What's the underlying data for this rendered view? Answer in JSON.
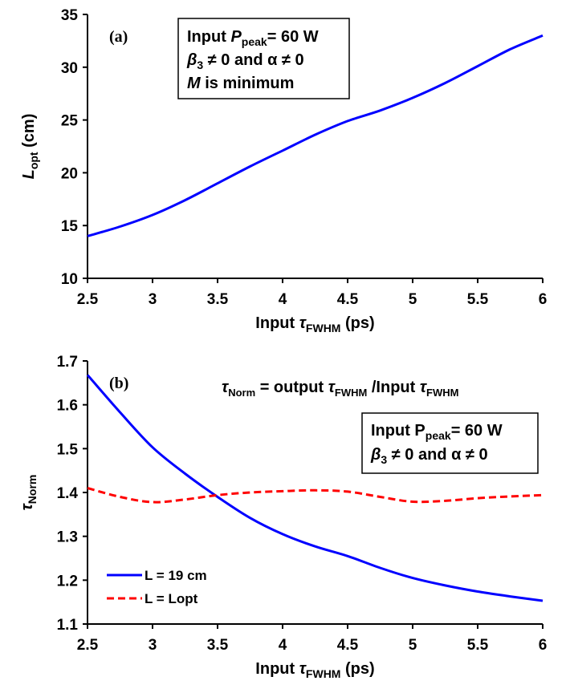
{
  "chart_data": [
    {
      "panel": "(a)",
      "type": "line",
      "xlabel": {
        "prefix": "Input ",
        "symbol": "τ",
        "sub": "FWHM",
        "suffix": " (ps)"
      },
      "ylabel": {
        "symbol": "L",
        "sub": "opt",
        "suffix": " (cm)"
      },
      "xlim": [
        2.5,
        6
      ],
      "ylim": [
        10,
        35
      ],
      "xticks": [
        "2.5",
        "3",
        "3.5",
        "4",
        "4.5",
        "5",
        "5.5",
        "6"
      ],
      "yticks": [
        "10",
        "15",
        "20",
        "25",
        "30",
        "35"
      ],
      "grid": false,
      "annotation": [
        {
          "prefix": "Input ",
          "italic": "P",
          "sub": "peak",
          "suffix": "= 60 W"
        },
        {
          "prefix": "",
          "italic": "β",
          "sub": "3",
          "suffix": " ≠ 0 and α ≠ 0"
        },
        {
          "prefix": "",
          "italic": "M",
          "sub": "",
          "suffix": " is minimum"
        }
      ],
      "series": [
        {
          "color": "#0000ff",
          "style": "solid",
          "x": [
            2.5,
            2.75,
            3.0,
            3.25,
            3.5,
            3.75,
            4.0,
            4.25,
            4.5,
            4.75,
            5.0,
            5.25,
            5.5,
            5.75,
            6.0
          ],
          "y": [
            14.0,
            14.9,
            16.0,
            17.4,
            19.0,
            20.6,
            22.1,
            23.6,
            24.9,
            25.9,
            27.1,
            28.5,
            30.1,
            31.7,
            33.0
          ]
        }
      ]
    },
    {
      "panel": "(b)",
      "type": "line",
      "xlabel": {
        "prefix": "Input ",
        "symbol": "τ",
        "sub": "FWHM",
        "suffix": " (ps)"
      },
      "ylabel": {
        "symbol": "τ",
        "sub": "Norm",
        "suffix": ""
      },
      "xlim": [
        2.5,
        6
      ],
      "ylim": [
        1.1,
        1.7
      ],
      "xticks": [
        "2.5",
        "3",
        "3.5",
        "4",
        "4.5",
        "5",
        "5.5",
        "6"
      ],
      "yticks": [
        "1.1",
        "1.2",
        "1.3",
        "1.4",
        "1.5",
        "1.6",
        "1.7"
      ],
      "grid": false,
      "formula": "τNorm = output τFWHM /Input τFWHM",
      "annotation": [
        {
          "prefix": "Input P",
          "italic": "",
          "sub": "peak",
          "suffix": "= 60 W"
        },
        {
          "prefix": "",
          "italic": "β",
          "sub": "3",
          "suffix": " ≠ 0 and α ≠ 0"
        }
      ],
      "legend_position": "bottom-left",
      "series": [
        {
          "name": "L = 19 cm",
          "color": "#0000ff",
          "style": "solid",
          "x": [
            2.5,
            2.75,
            3.0,
            3.25,
            3.5,
            3.75,
            4.0,
            4.25,
            4.5,
            4.75,
            5.0,
            5.25,
            5.5,
            5.75,
            6.0
          ],
          "y": [
            1.668,
            1.583,
            1.503,
            1.443,
            1.39,
            1.342,
            1.305,
            1.277,
            1.255,
            1.228,
            1.205,
            1.188,
            1.174,
            1.163,
            1.153
          ]
        },
        {
          "name": "L = Lopt",
          "color": "#ff0000",
          "style": "dashed",
          "x": [
            2.5,
            2.75,
            3.0,
            3.25,
            3.5,
            3.75,
            4.0,
            4.25,
            4.5,
            4.75,
            5.0,
            5.25,
            5.5,
            5.75,
            6.0
          ],
          "y": [
            1.41,
            1.39,
            1.378,
            1.384,
            1.394,
            1.4,
            1.403,
            1.405,
            1.402,
            1.39,
            1.379,
            1.381,
            1.387,
            1.391,
            1.394
          ]
        }
      ]
    }
  ]
}
